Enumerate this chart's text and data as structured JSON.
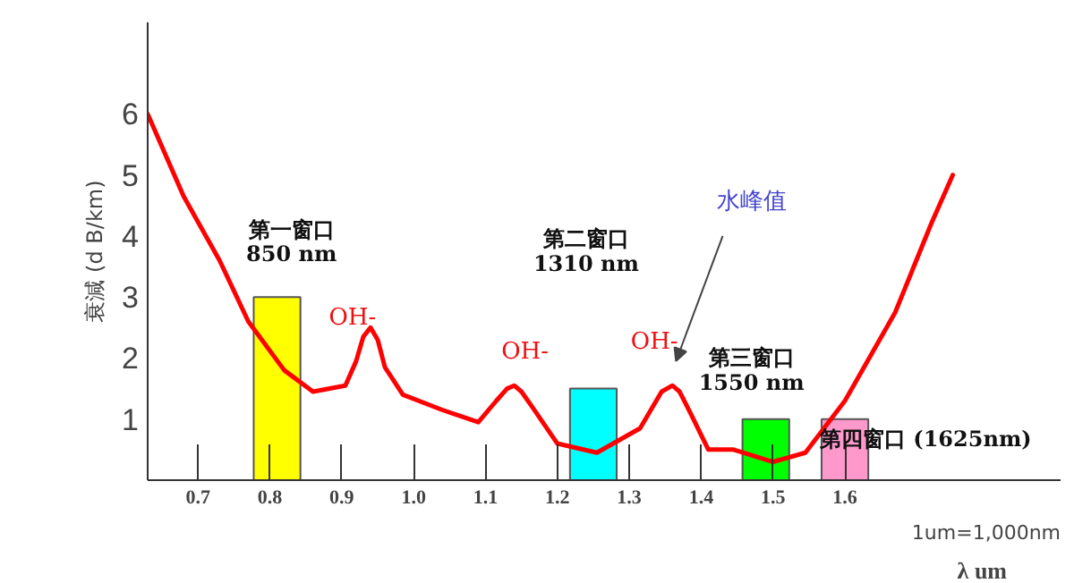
{
  "chart_data": {
    "type": "line",
    "ylabel": "衰減 (d B/km)",
    "xlabel": "λ um",
    "xlim": [
      0.63,
      1.9
    ],
    "ylim": [
      0,
      7.5
    ],
    "xticks": [
      {
        "value": 0.7,
        "label": "0.7"
      },
      {
        "value": 0.8,
        "label": "0.8"
      },
      {
        "value": 0.9,
        "label": "0.9"
      },
      {
        "value": 1.0,
        "label": "1.0"
      },
      {
        "value": 1.1,
        "label": "1.1"
      },
      {
        "value": 1.2,
        "label": "1.2"
      },
      {
        "value": 1.3,
        "label": "1.3"
      },
      {
        "value": 1.4,
        "label": "1.4"
      },
      {
        "value": 1.5,
        "label": "1.5"
      },
      {
        "value": 1.6,
        "label": "1.6"
      }
    ],
    "yticks": [
      1,
      2,
      3,
      4,
      5,
      6
    ],
    "series": [
      {
        "type": "bar",
        "x": [
          0.81,
          1.25,
          1.49,
          1.6
        ],
        "values": [
          3,
          1.5,
          1,
          1
        ],
        "colors": [
          "#ffff00",
          "#00ffff",
          "#00ff00",
          "#ff99cc"
        ]
      },
      {
        "color": "#ff0000",
        "x": [
          0.63,
          0.68,
          0.73,
          0.77,
          0.82,
          0.86,
          0.905,
          0.92,
          0.93,
          0.94,
          0.95,
          0.96,
          0.985,
          1.04,
          1.09,
          1.115,
          1.13,
          1.14,
          1.15,
          1.165,
          1.2,
          1.255,
          1.315,
          1.345,
          1.36,
          1.37,
          1.385,
          1.41,
          1.445,
          1.5,
          1.545,
          1.6,
          1.67,
          1.72,
          1.75
        ],
        "values": [
          6,
          4.65,
          3.6,
          2.6,
          1.8,
          1.45,
          1.55,
          1.95,
          2.35,
          2.5,
          2.3,
          1.85,
          1.4,
          1.15,
          0.95,
          1.3,
          1.5,
          1.55,
          1.45,
          1.2,
          0.6,
          0.45,
          0.85,
          1.45,
          1.55,
          1.45,
          1.1,
          0.5,
          0.5,
          0.3,
          0.45,
          1.3,
          2.75,
          4.2,
          5.0
        ]
      }
    ],
    "annotations": [
      "第一窗口",
      "850 nm",
      "第二窗口",
      "1310 nm",
      "OH-",
      "OH-",
      "OH-",
      "水峰值",
      "第三窗口",
      "1550 nm",
      "第四窗口 (1625nm)",
      "1um=1,000nm"
    ]
  }
}
